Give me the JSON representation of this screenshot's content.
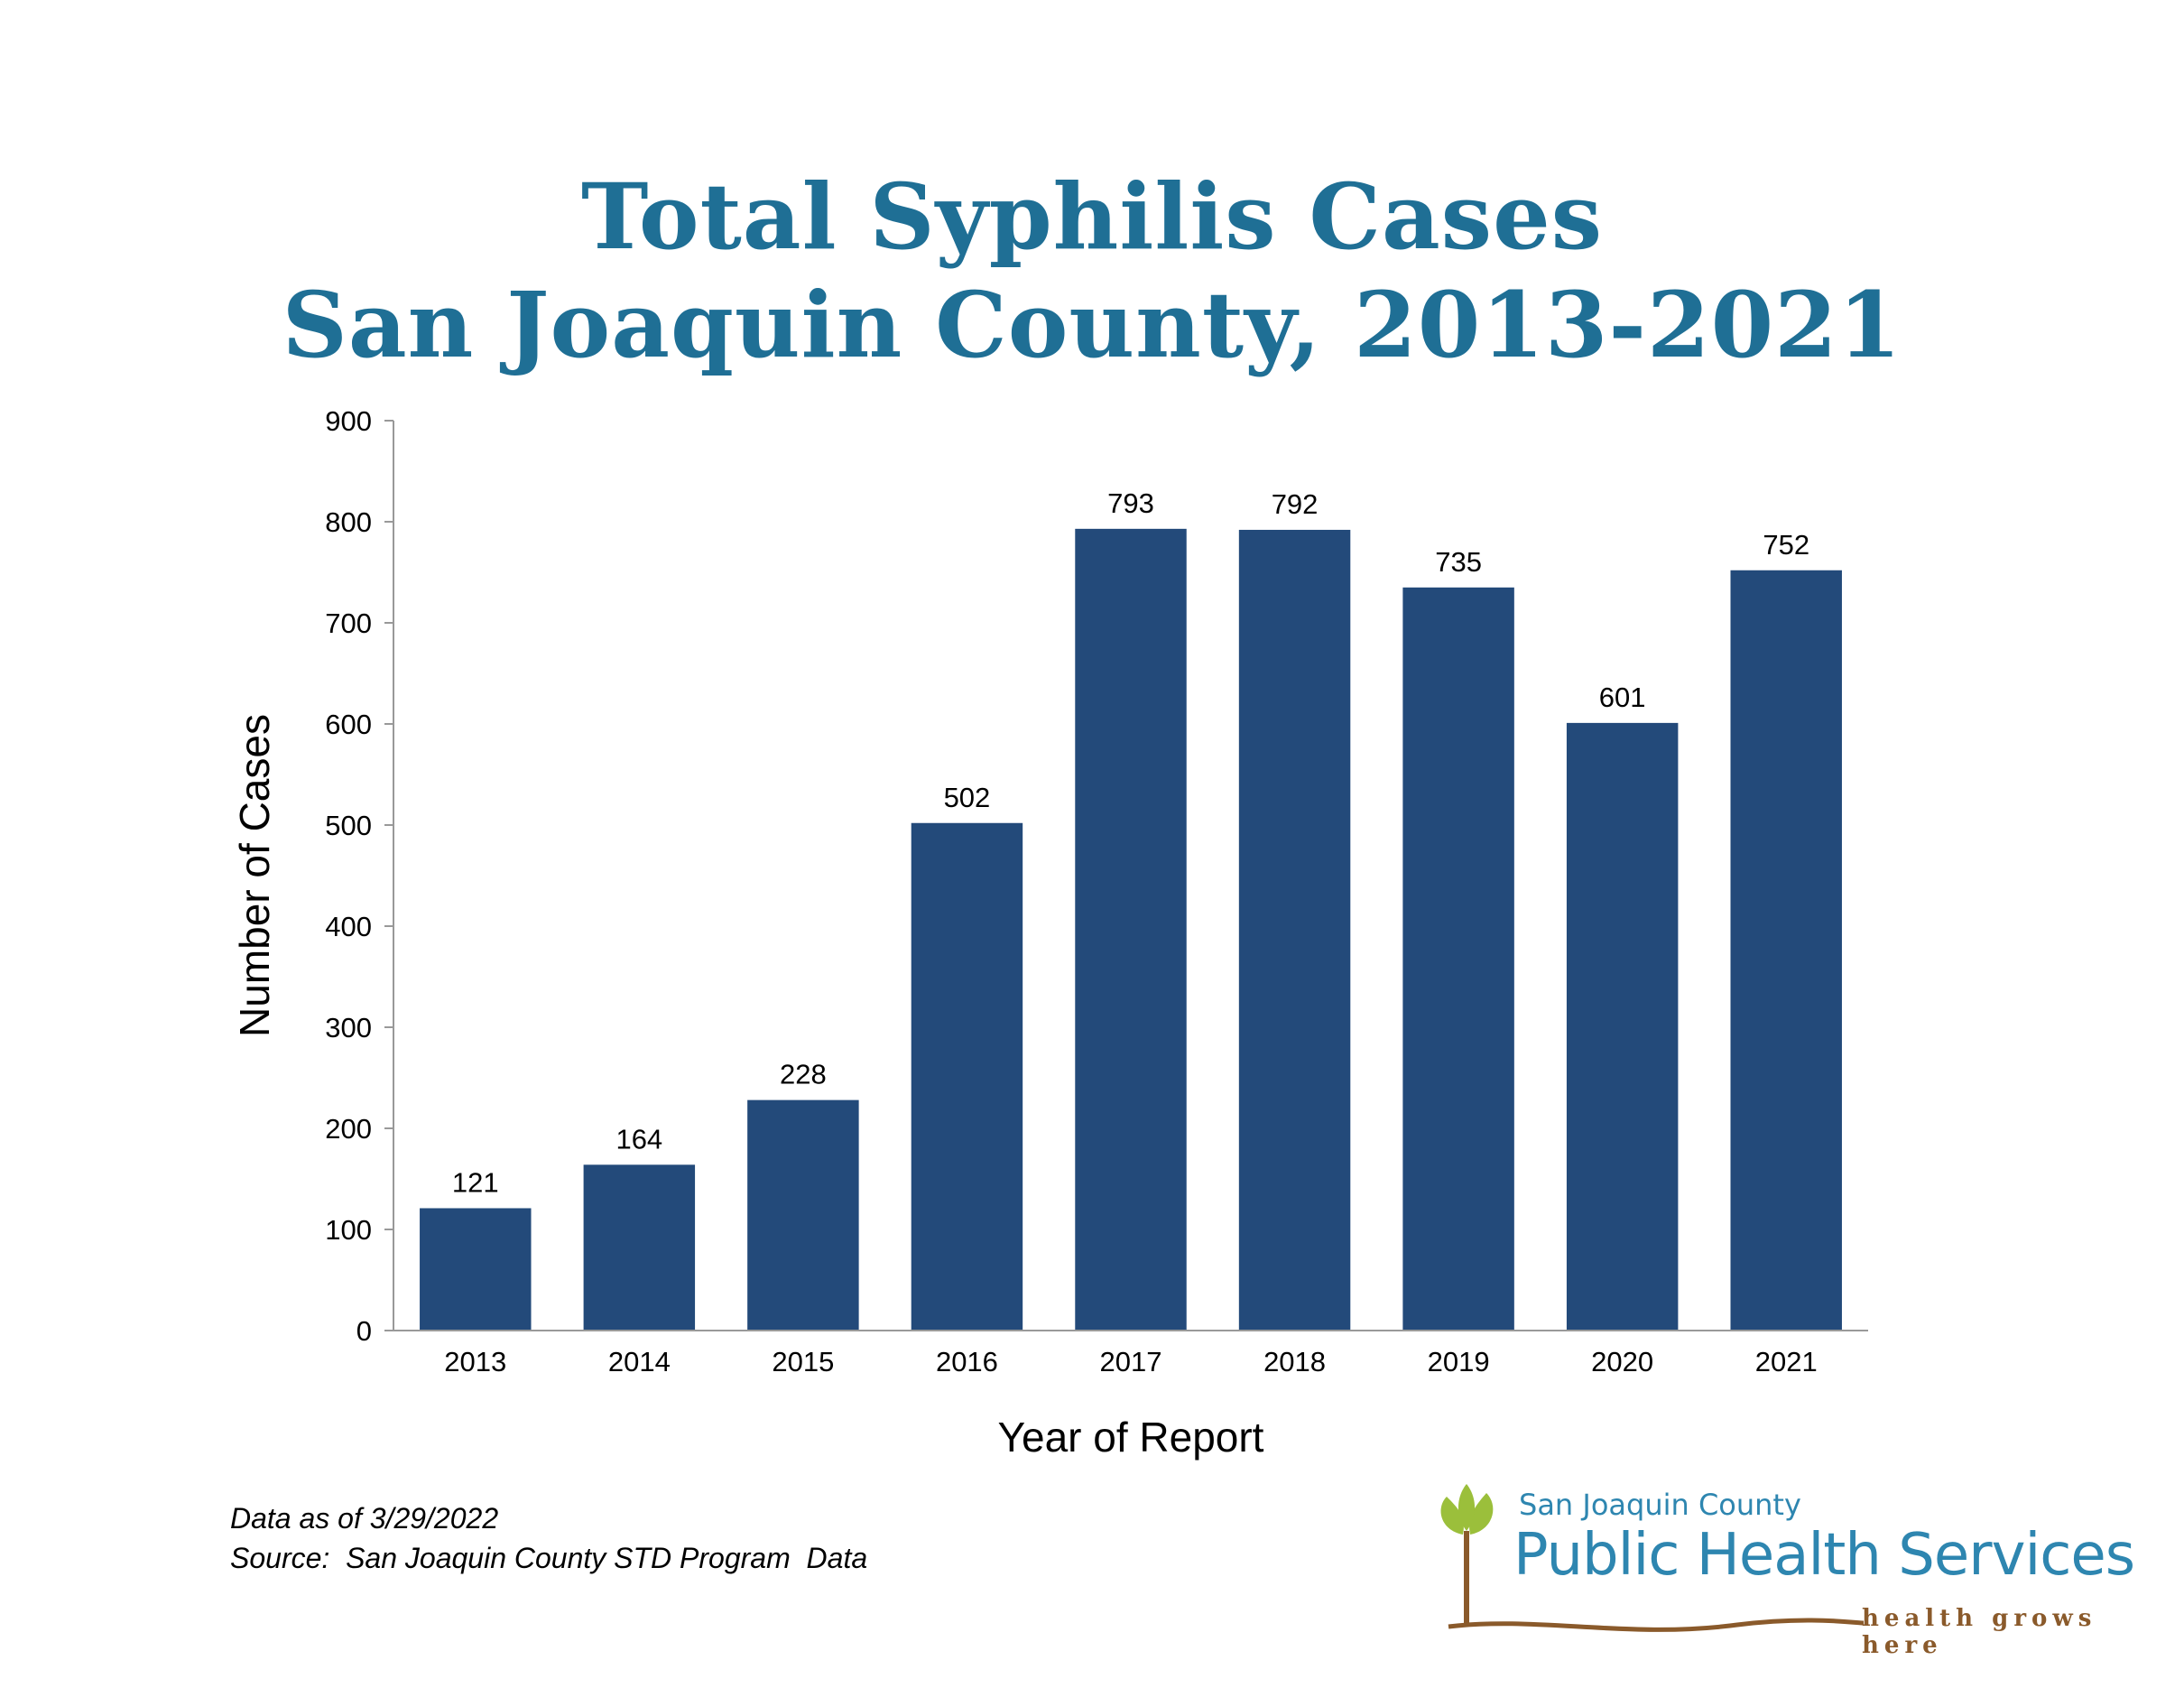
{
  "chart_data": {
    "type": "bar",
    "title": "Total Syphilis Cases",
    "subtitle": "San Joaquin County, 2013-2021",
    "xlabel": "Year of Report",
    "ylabel": "Number of Cases",
    "categories": [
      "2013",
      "2014",
      "2015",
      "2016",
      "2017",
      "2018",
      "2019",
      "2020",
      "2021"
    ],
    "values": [
      121,
      164,
      228,
      502,
      793,
      792,
      735,
      601,
      752
    ],
    "data_labels": [
      "121",
      "164",
      "228",
      "502",
      "793",
      "792",
      "735",
      "601",
      "752"
    ],
    "ylim": [
      0,
      900
    ],
    "yticks": [
      "0",
      "100",
      "200",
      "300",
      "400",
      "500",
      "600",
      "700",
      "800",
      "900"
    ],
    "grid": false,
    "legend": "none",
    "bar_color": "#234a7a"
  },
  "notes": {
    "data_date": "Data as of 3/29/2022",
    "source": "Source:  San Joaquin County STD Program  Data"
  },
  "logo": {
    "county": "San Joaquin County",
    "name": "Public Health Services",
    "tagline": "health grows here",
    "leaf_color": "#9bbf3b",
    "trunk_color": "#8a5a2b",
    "text_color": "#2e86b0"
  }
}
